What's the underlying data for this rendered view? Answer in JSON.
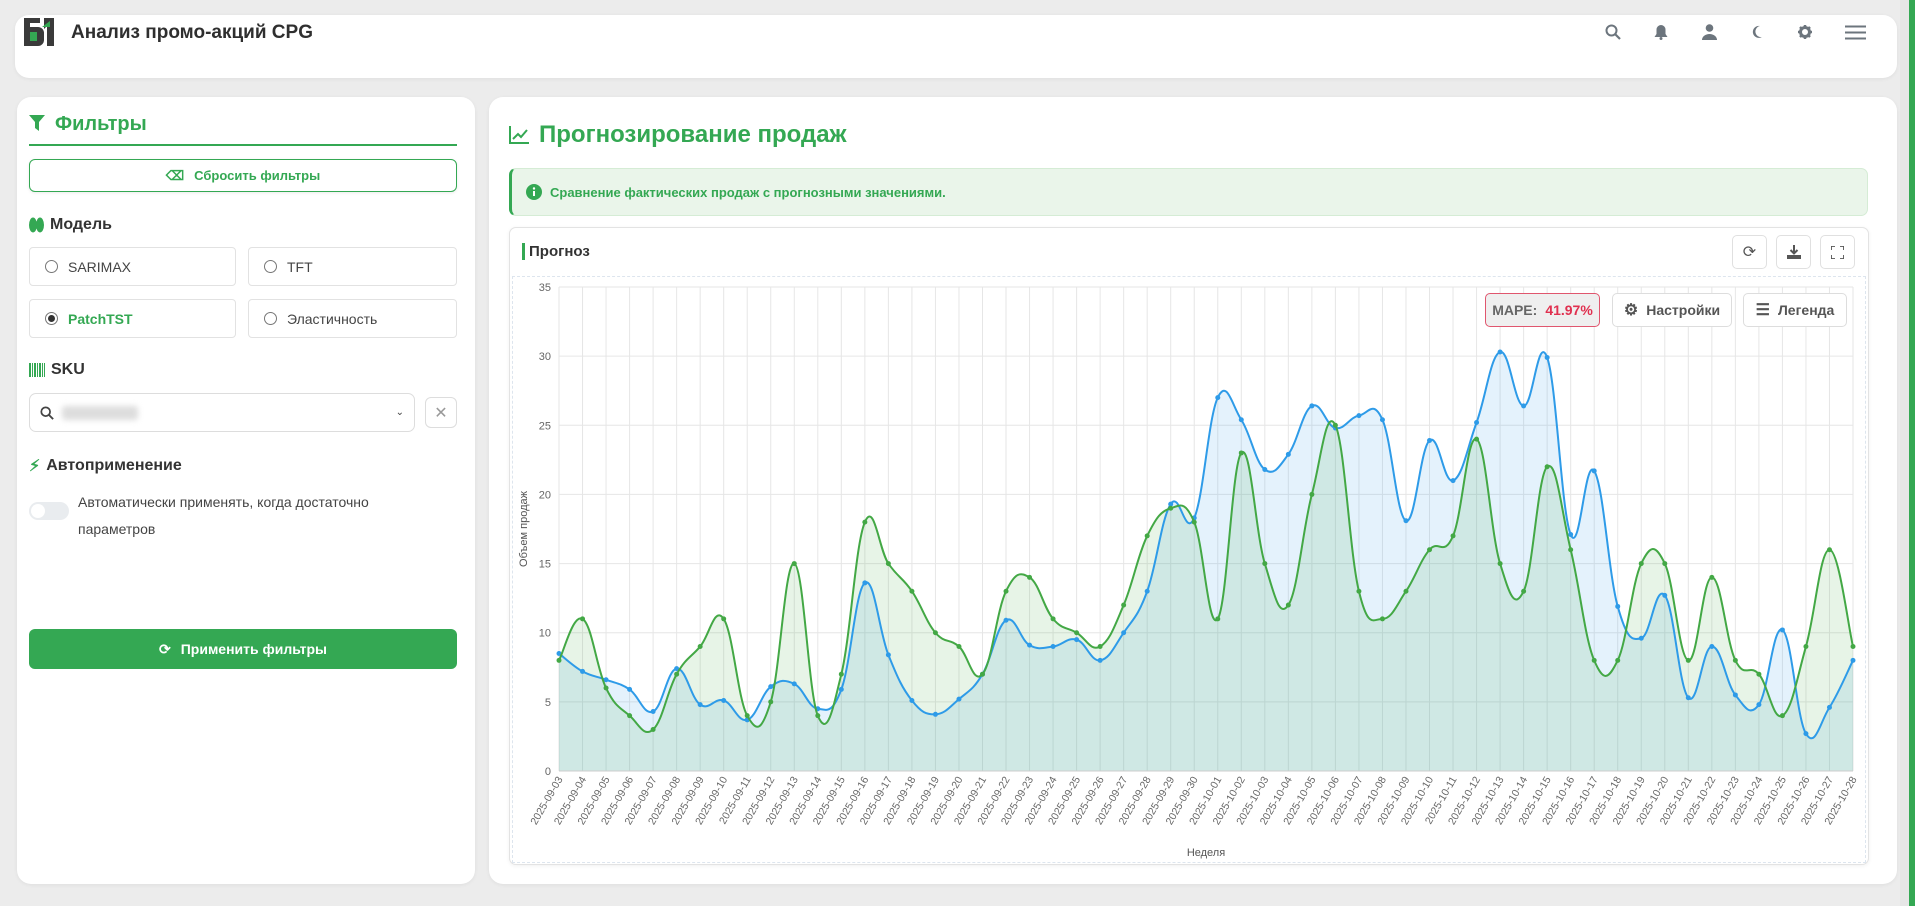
{
  "header": {
    "title": "Анализ промо-акций CPG",
    "icons": [
      "search-icon",
      "bell-icon",
      "user-icon",
      "moon-icon",
      "gear-icon",
      "menu-icon"
    ]
  },
  "filters": {
    "title": "Фильтры",
    "reset_label": "Сбросить фильтры",
    "model_heading": "Модель",
    "models": [
      {
        "label": "SARIMAX",
        "selected": false
      },
      {
        "label": "TFT",
        "selected": false
      },
      {
        "label": "PatchTST",
        "selected": true
      },
      {
        "label": "Эластичность",
        "selected": false
      }
    ],
    "sku_heading": "SKU",
    "autoapply_heading": "Автоприменение",
    "autoapply_text": "Автоматически применять, когда достаточно параметров",
    "autoapply_enabled": false,
    "apply_label": "Применить фильтры"
  },
  "main": {
    "title": "Прогнозирование продаж",
    "info": "Сравнение фактических продаж с прогнозными значениями.",
    "chart_title": "Прогноз",
    "mape_label": "MAPE:",
    "mape_value": "41.97%",
    "settings_label": "Настройки",
    "legend_label": "Легенда"
  },
  "colors": {
    "accent": "#34a853",
    "blue": "#2e9be8",
    "green": "#43a845",
    "mape": "#e0304f"
  },
  "chart_data": {
    "type": "line",
    "xlabel": "Неделя",
    "ylabel": "Объем продаж",
    "ylim": [
      0,
      35
    ],
    "yticks": [
      0,
      5,
      10,
      15,
      20,
      25,
      30,
      35
    ],
    "grid": true,
    "x": [
      "2025-09-03",
      "2025-09-04",
      "2025-09-05",
      "2025-09-06",
      "2025-09-07",
      "2025-09-08",
      "2025-09-09",
      "2025-09-10",
      "2025-09-11",
      "2025-09-12",
      "2025-09-13",
      "2025-09-14",
      "2025-09-15",
      "2025-09-16",
      "2025-09-17",
      "2025-09-18",
      "2025-09-19",
      "2025-09-20",
      "2025-09-21",
      "2025-09-22",
      "2025-09-23",
      "2025-09-24",
      "2025-09-25",
      "2025-09-26",
      "2025-09-27",
      "2025-09-28",
      "2025-09-29",
      "2025-09-30",
      "2025-10-01",
      "2025-10-02",
      "2025-10-03",
      "2025-10-04",
      "2025-10-05",
      "2025-10-06",
      "2025-10-07",
      "2025-10-08",
      "2025-10-09",
      "2025-10-10",
      "2025-10-11",
      "2025-10-12",
      "2025-10-13",
      "2025-10-14",
      "2025-10-15",
      "2025-10-16",
      "2025-10-17",
      "2025-10-18",
      "2025-10-19",
      "2025-10-20",
      "2025-10-21",
      "2025-10-22",
      "2025-10-23",
      "2025-10-24",
      "2025-10-25",
      "2025-10-26",
      "2025-10-27",
      "2025-10-28"
    ],
    "series": [
      {
        "id": "blue",
        "color": "#2e9be8",
        "values": [
          8.5,
          7.2,
          6.6,
          5.9,
          4.3,
          7.4,
          4.8,
          5.1,
          3.7,
          6.1,
          6.3,
          4.5,
          5.9,
          13.6,
          8.4,
          5.1,
          4.1,
          5.2,
          7,
          10.9,
          9.1,
          9,
          9.5,
          8,
          10,
          13,
          19.3,
          18.3,
          27,
          25.4,
          21.8,
          22.9,
          26.4,
          24.8,
          25.7,
          25.4,
          18.1,
          23.9,
          21,
          25.2,
          30.3,
          26.4,
          29.9,
          17.1,
          21.7,
          11.9,
          9.6,
          12.7,
          5.3,
          9,
          5.5,
          4.8,
          10.2,
          2.7,
          4.6,
          8
        ]
      },
      {
        "id": "green",
        "color": "#43a845",
        "values": [
          8,
          11,
          6,
          4,
          3,
          7,
          9,
          11,
          4,
          5,
          15,
          4,
          7,
          18,
          15,
          13,
          10,
          9,
          7,
          13,
          14,
          11,
          10,
          9,
          12,
          17,
          19,
          18,
          11,
          23,
          15,
          12,
          20,
          25,
          13,
          11,
          13,
          16,
          17,
          24,
          15,
          13,
          22,
          16,
          8,
          8,
          15,
          15,
          8,
          14,
          8,
          7,
          4,
          9,
          16,
          9
        ]
      }
    ]
  }
}
